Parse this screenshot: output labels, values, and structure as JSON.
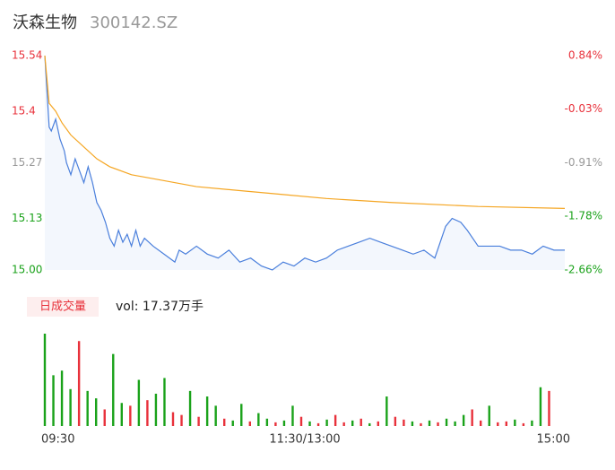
{
  "header": {
    "name": "沃森生物",
    "code": "300142.SZ"
  },
  "volume_button": "日成交量",
  "volume_text": "vol: 17.37万手",
  "chart_data": [
    {
      "type": "line",
      "xlim": [
        0,
        240
      ],
      "xticks": [
        {
          "value": 0,
          "label": "09:30"
        },
        {
          "value": 120,
          "label": "11:30/13:00"
        },
        {
          "value": 240,
          "label": "15:00"
        }
      ],
      "ylim": [
        15.0,
        15.54
      ],
      "yticks": [
        15.54,
        15.4,
        15.27,
        15.13,
        {
          "value": 15.0,
          "label": "15.00"
        }
      ],
      "ytick_colors": [
        "#e8313b",
        "#e8313b",
        "#999999",
        "#1aa21a",
        "#1aa21a"
      ],
      "y2lim": [
        -2.66,
        0.84
      ],
      "y2ticks": [
        {
          "value": 0.84,
          "label": "0.84%"
        },
        {
          "value": -0.03,
          "label": "-0.03%"
        },
        {
          "value": -0.91,
          "label": "-0.91%"
        },
        {
          "value": -1.78,
          "label": "-1.78%"
        },
        {
          "value": -2.66,
          "label": "-2.66%"
        }
      ],
      "y2tick_colors": [
        "#e8313b",
        "#e8313b",
        "#999999",
        "#1aa21a",
        "#1aa21a"
      ],
      "grid": false,
      "series": [
        {
          "name": "price",
          "color": "#4a7fdc",
          "x": [
            0,
            1,
            2,
            3,
            5,
            7,
            9,
            10,
            12,
            14,
            16,
            18,
            20,
            22,
            24,
            26,
            28,
            30,
            32,
            34,
            36,
            38,
            40,
            42,
            44,
            46,
            50,
            55,
            60,
            62,
            65,
            70,
            75,
            80,
            85,
            90,
            95,
            100,
            105,
            110,
            115,
            120,
            125,
            130,
            135,
            140,
            145,
            150,
            155,
            160,
            165,
            170,
            175,
            180,
            185,
            188,
            192,
            195,
            200,
            205,
            210,
            215,
            220,
            225,
            230,
            235,
            240
          ],
          "values": [
            15.54,
            15.45,
            15.36,
            15.35,
            15.38,
            15.33,
            15.3,
            15.27,
            15.24,
            15.28,
            15.25,
            15.22,
            15.26,
            15.22,
            15.17,
            15.15,
            15.12,
            15.08,
            15.06,
            15.1,
            15.07,
            15.09,
            15.06,
            15.1,
            15.06,
            15.08,
            15.06,
            15.04,
            15.02,
            15.05,
            15.04,
            15.06,
            15.04,
            15.03,
            15.05,
            15.02,
            15.03,
            15.01,
            15,
            15.02,
            15.01,
            15.03,
            15.02,
            15.03,
            15.05,
            15.06,
            15.07,
            15.08,
            15.07,
            15.06,
            15.05,
            15.04,
            15.05,
            15.03,
            15.11,
            15.13,
            15.12,
            15.1,
            15.06,
            15.06,
            15.06,
            15.05,
            15.05,
            15.04,
            15.06,
            15.05,
            15.05
          ]
        },
        {
          "name": "average",
          "color": "#f5a623",
          "x": [
            0,
            2,
            5,
            8,
            12,
            18,
            24,
            30,
            40,
            50,
            70,
            90,
            110,
            130,
            160,
            200,
            240
          ],
          "values": [
            15.54,
            15.42,
            15.4,
            15.37,
            15.34,
            15.31,
            15.28,
            15.26,
            15.24,
            15.23,
            15.21,
            15.2,
            15.19,
            15.18,
            15.17,
            15.16,
            15.155
          ]
        }
      ]
    },
    {
      "type": "bar",
      "xlim": [
        0,
        240
      ],
      "ylim": [
        0,
        100
      ],
      "x": [
        0,
        4,
        8,
        12,
        16,
        20,
        24,
        28,
        32,
        36,
        40,
        44,
        48,
        52,
        56,
        60,
        64,
        68,
        72,
        76,
        80,
        84,
        88,
        92,
        96,
        100,
        104,
        108,
        112,
        116,
        120,
        124,
        128,
        132,
        136,
        140,
        144,
        148,
        152,
        156,
        160,
        164,
        168,
        172,
        176,
        180,
        184,
        188,
        192,
        196,
        200,
        204,
        208,
        212,
        216,
        220,
        224,
        228,
        232,
        236
      ],
      "values": [
        100,
        55,
        60,
        40,
        92,
        38,
        30,
        18,
        78,
        25,
        22,
        50,
        28,
        35,
        52,
        15,
        12,
        38,
        10,
        32,
        22,
        8,
        6,
        24,
        5,
        14,
        8,
        4,
        6,
        22,
        10,
        5,
        3,
        7,
        12,
        4,
        6,
        8,
        3,
        5,
        32,
        10,
        7,
        5,
        3,
        6,
        4,
        8,
        5,
        12,
        18,
        6,
        22,
        4,
        5,
        7,
        3,
        6,
        42,
        38
      ],
      "bar_colors": [
        "#1aa21a",
        "#1aa21a",
        "#1aa21a",
        "#1aa21a",
        "#e8313b",
        "#1aa21a",
        "#1aa21a",
        "#e8313b",
        "#1aa21a",
        "#1aa21a",
        "#e8313b",
        "#1aa21a",
        "#e8313b",
        "#1aa21a",
        "#1aa21a",
        "#e8313b",
        "#e8313b",
        "#1aa21a",
        "#e8313b",
        "#1aa21a",
        "#1aa21a",
        "#e8313b",
        "#1aa21a",
        "#1aa21a",
        "#e8313b",
        "#1aa21a",
        "#1aa21a",
        "#e8313b",
        "#1aa21a",
        "#1aa21a",
        "#e8313b",
        "#1aa21a",
        "#e8313b",
        "#1aa21a",
        "#e8313b",
        "#e8313b",
        "#1aa21a",
        "#e8313b",
        "#1aa21a",
        "#e8313b",
        "#1aa21a",
        "#e8313b",
        "#e8313b",
        "#1aa21a",
        "#e8313b",
        "#1aa21a",
        "#e8313b",
        "#1aa21a",
        "#1aa21a",
        "#1aa21a",
        "#e8313b",
        "#e8313b",
        "#1aa21a",
        "#e8313b",
        "#e8313b",
        "#1aa21a",
        "#e8313b",
        "#1aa21a",
        "#1aa21a",
        "#e8313b"
      ]
    }
  ]
}
